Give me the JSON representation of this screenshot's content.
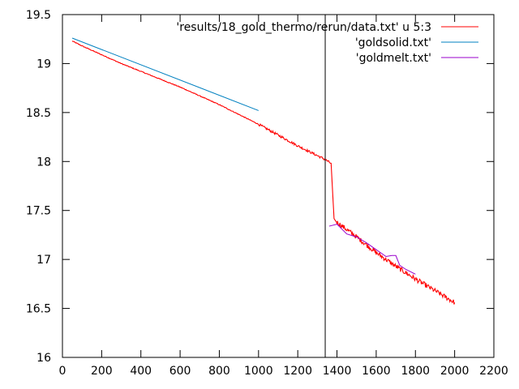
{
  "chart_data": {
    "type": "line",
    "title": "",
    "xlabel": "",
    "ylabel": "",
    "xlim": [
      0,
      2200
    ],
    "ylim": [
      16,
      19.5
    ],
    "grid": false,
    "legend_position": "top-right",
    "x_ticks": [
      0,
      200,
      400,
      600,
      800,
      1000,
      1200,
      1400,
      1600,
      1800,
      2000,
      2200
    ],
    "x_tick_labels": [
      "0",
      "200",
      "400",
      "600",
      "800",
      "1000",
      "1200",
      "1400",
      "1600",
      "1800",
      "2000",
      "2200"
    ],
    "y_ticks": [
      16,
      16.5,
      17,
      17.5,
      18,
      18.5,
      19,
      19.5
    ],
    "y_tick_labels": [
      "16",
      "16.5",
      "17",
      "17.5",
      "18",
      "18.5",
      "19",
      "19.5"
    ],
    "vertical_line_x": 1340,
    "series": [
      {
        "name": "'results/18_gold_thermo/rerun/data.txt' u 5:3",
        "color": "#ff0000",
        "x": [
          50,
          100,
          200,
          300,
          400,
          500,
          600,
          700,
          800,
          900,
          1000,
          1100,
          1200,
          1300,
          1340,
          1370,
          1380,
          1385,
          1390,
          1400,
          1500,
          1600,
          1700,
          1800,
          1900,
          2000
        ],
        "y": [
          19.23,
          19.18,
          19.09,
          19.0,
          18.92,
          18.84,
          18.76,
          18.67,
          18.58,
          18.48,
          18.38,
          18.27,
          18.16,
          18.06,
          18.02,
          17.98,
          17.6,
          17.42,
          17.4,
          17.38,
          17.23,
          17.07,
          16.93,
          16.8,
          16.68,
          16.56
        ]
      },
      {
        "name": "'goldsolid.txt'",
        "color": "#0080c0",
        "x": [
          50,
          1000
        ],
        "y": [
          19.26,
          18.52
        ]
      },
      {
        "name": "'goldmelt.txt'",
        "color": "#9900cc",
        "x": [
          1360,
          1400,
          1450,
          1500,
          1550,
          1600,
          1650,
          1680,
          1700,
          1720,
          1750,
          1800
        ],
        "y": [
          17.34,
          17.36,
          17.26,
          17.23,
          17.17,
          17.1,
          17.03,
          17.04,
          17.04,
          16.94,
          16.9,
          16.85
        ]
      }
    ]
  }
}
